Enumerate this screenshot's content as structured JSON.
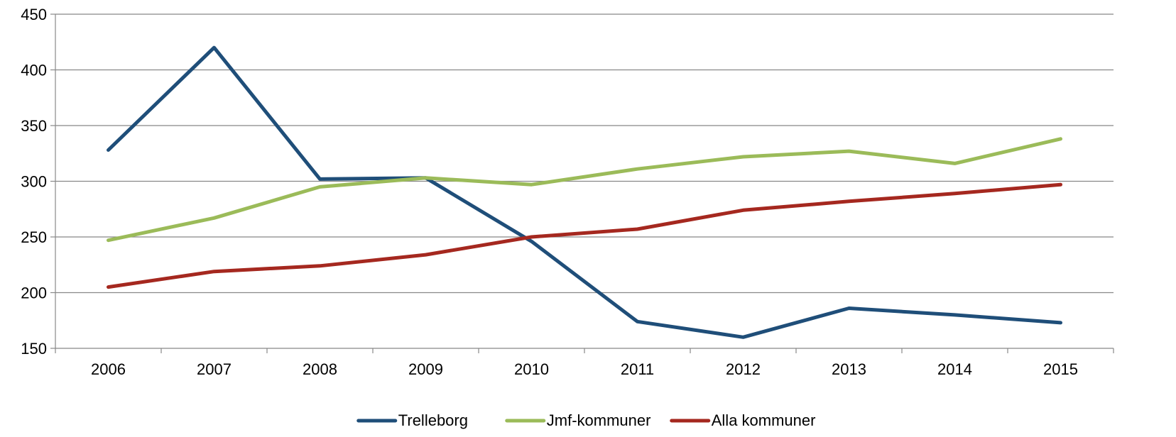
{
  "chart_data": {
    "type": "line",
    "title": "",
    "xlabel": "",
    "ylabel": "",
    "categories": [
      "2006",
      "2007",
      "2008",
      "2009",
      "2010",
      "2011",
      "2012",
      "2013",
      "2014",
      "2015"
    ],
    "ylim": [
      150,
      450
    ],
    "yticks": [
      150,
      200,
      250,
      300,
      350,
      400,
      450
    ],
    "grid": "horizontal",
    "legend_position": "bottom",
    "series": [
      {
        "name": "Trelleborg",
        "color": "#1f4e79",
        "values": [
          328,
          420,
          302,
          303,
          246,
          174,
          160,
          186,
          180,
          173
        ]
      },
      {
        "name": "Jmf-kommuner",
        "color": "#9bbb59",
        "values": [
          247,
          267,
          295,
          303,
          297,
          311,
          322,
          327,
          316,
          338
        ]
      },
      {
        "name": "Alla kommuner",
        "color": "#a5281f",
        "values": [
          205,
          219,
          224,
          234,
          250,
          257,
          274,
          282,
          289,
          297
        ]
      }
    ]
  }
}
